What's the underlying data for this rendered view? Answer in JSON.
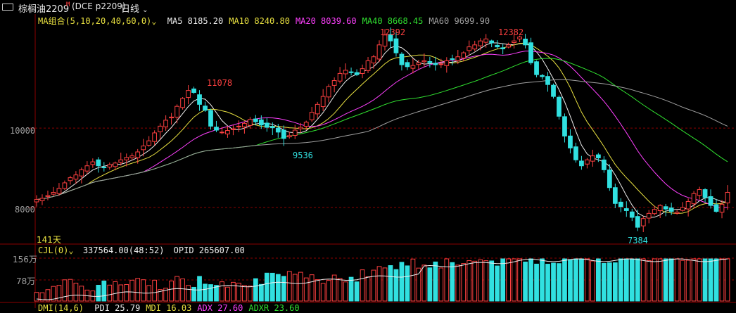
{
  "header": {
    "symbol": "棕榈油2209",
    "flag": "M",
    "code": "(DCE p2209)",
    "period": "日线"
  },
  "ma_legend": {
    "title": "MA组合(5,10,20,40,60,0)",
    "items": [
      {
        "label": "MA5 8185.20",
        "color": "#f0f0f0"
      },
      {
        "label": "MA10 8240.80",
        "color": "#e8e040"
      },
      {
        "label": "MA20 8039.60",
        "color": "#ff40ff"
      },
      {
        "label": "MA40 8668.45",
        "color": "#30e030"
      },
      {
        "label": "MA60 9699.90",
        "color": "#a0a0a0"
      }
    ]
  },
  "price_axis": {
    "labels": [
      "10000",
      "8000"
    ]
  },
  "annotations": {
    "high1": "11078",
    "low1": "9536",
    "high2": "12392",
    "high3": "12382",
    "low2": "7384",
    "days": "141天"
  },
  "volume_legend": {
    "title": "CJL(0)",
    "vol": "337564.00(48:52)",
    "opid": "OPID 265607.00"
  },
  "volume_axis": {
    "labels": [
      "156万",
      "78万"
    ]
  },
  "dmi_legend": {
    "title": "DMI(14,6)",
    "items": [
      {
        "label": "PDI 25.79",
        "color": "#f0f0f0"
      },
      {
        "label": "MDI 16.03",
        "color": "#e8e040"
      },
      {
        "label": "ADX 27.60",
        "color": "#ff40ff"
      },
      {
        "label": "ADXR 23.60",
        "color": "#30e030"
      }
    ]
  },
  "colors": {
    "up": "#ff4040",
    "down": "#31e0e0",
    "grid": "#8b0000"
  },
  "chart_data": {
    "type": "candlestick",
    "price_ylim": [
      7200,
      12700
    ],
    "candles_close_approx": [
      8200,
      8230,
      8300,
      8380,
      8480,
      8620,
      8750,
      8820,
      8950,
      9050,
      9150,
      9050,
      9000,
      9080,
      9120,
      9200,
      9260,
      9300,
      9400,
      9550,
      9680,
      9880,
      10050,
      10200,
      10280,
      10550,
      10750,
      10950,
      10900,
      10600,
      10450,
      10050,
      9950,
      9900,
      9940,
      9980,
      10050,
      10120,
      10220,
      10160,
      10080,
      10020,
      10010,
      9900,
      9740,
      9810,
      9950,
      10020,
      10150,
      10400,
      10600,
      10800,
      11050,
      11200,
      11380,
      11460,
      11400,
      11350,
      11500,
      11700,
      11800,
      12100,
      12350,
      12200,
      11900,
      11600,
      11550,
      11580,
      11650,
      11700,
      11650,
      11600,
      11620,
      11700,
      11750,
      11800,
      11900,
      12050,
      12100,
      12200,
      12250,
      12150,
      12050,
      12000,
      12100,
      12200,
      12300,
      12100,
      11650,
      11350,
      11300,
      11100,
      10800,
      10300,
      9800,
      9500,
      9200,
      9050,
      9200,
      9300,
      9250,
      8950,
      8500,
      8100,
      8020,
      7920,
      7750,
      7500,
      7720,
      7850,
      7950,
      8050,
      7960,
      7900,
      7880,
      8000,
      8150,
      8350,
      8450,
      8250,
      8050,
      7900,
      8080,
      8380
    ]
  }
}
